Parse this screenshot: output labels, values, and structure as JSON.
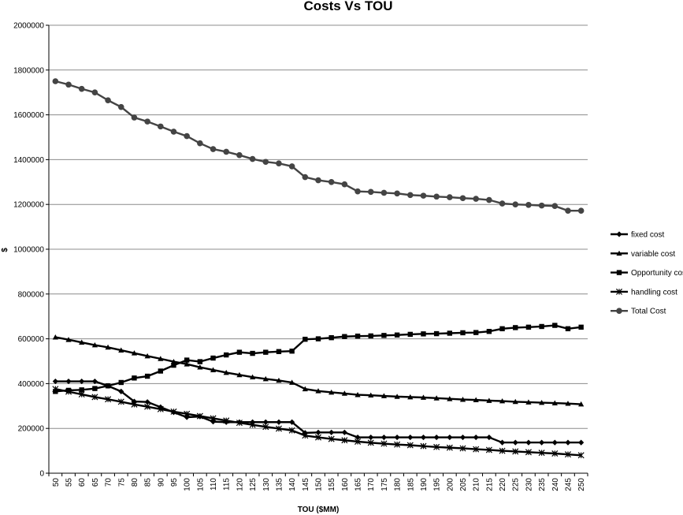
{
  "chart_data": {
    "type": "line",
    "title": "Costs Vs TOU",
    "xlabel": "TOU ($MM)",
    "ylabel": "$",
    "ylim": [
      0,
      2000000
    ],
    "yticks": [
      "0",
      "200000",
      "400000",
      "600000",
      "800000",
      "1000000",
      "1200000",
      "1400000",
      "1600000",
      "1800000",
      "2000000"
    ],
    "grid": "horizontal",
    "legend_position": "right",
    "x": [
      50,
      55,
      60,
      65,
      70,
      75,
      80,
      85,
      90,
      95,
      100,
      105,
      110,
      115,
      120,
      125,
      130,
      135,
      140,
      145,
      150,
      155,
      160,
      165,
      170,
      175,
      180,
      185,
      190,
      195,
      200,
      205,
      210,
      215,
      220,
      225,
      230,
      235,
      240,
      245,
      250
    ],
    "series": [
      {
        "name": "fixed cost",
        "marker": "diamond",
        "color": "#000000",
        "values": [
          410000,
          410000,
          410000,
          410000,
          390000,
          365000,
          320000,
          318000,
          295000,
          272000,
          250000,
          253000,
          230000,
          228000,
          228000,
          228000,
          228000,
          228000,
          228000,
          180000,
          182000,
          182000,
          182000,
          160000,
          160000,
          160000,
          160000,
          160000,
          160000,
          160000,
          160000,
          160000,
          160000,
          160000,
          137000,
          137000,
          137000,
          137000,
          137000,
          137000,
          137000
        ]
      },
      {
        "name": "variable cost",
        "marker": "triangle",
        "color": "#000000",
        "values": [
          607000,
          596000,
          584000,
          572000,
          562000,
          549000,
          536000,
          523000,
          511000,
          498000,
          487000,
          473000,
          461000,
          449000,
          439000,
          429000,
          421000,
          414000,
          405000,
          376000,
          367000,
          361000,
          356000,
          350000,
          348000,
          345000,
          342000,
          340000,
          338000,
          335000,
          332000,
          329000,
          327000,
          324000,
          322000,
          319000,
          317000,
          315000,
          313000,
          311000,
          308000
        ]
      },
      {
        "name": "Opportunity cost",
        "marker": "square",
        "color": "#000000",
        "values": [
          365000,
          370000,
          372000,
          378000,
          390000,
          405000,
          425000,
          433000,
          456000,
          482000,
          505000,
          498000,
          514000,
          528000,
          540000,
          535000,
          540000,
          543000,
          545000,
          598000,
          600000,
          605000,
          610000,
          612000,
          613000,
          615000,
          617000,
          620000,
          622000,
          623000,
          625000,
          627000,
          628000,
          633000,
          645000,
          650000,
          652000,
          655000,
          660000,
          645000,
          652000
        ]
      },
      {
        "name": "handling cost",
        "marker": "asterisk",
        "color": "#000000",
        "values": [
          376000,
          364000,
          352000,
          340000,
          330000,
          319000,
          307000,
          297000,
          286000,
          275000,
          265000,
          255000,
          245000,
          235000,
          225000,
          216000,
          207000,
          199000,
          191000,
          168000,
          160000,
          153000,
          147000,
          141000,
          136000,
          132000,
          128000,
          125000,
          121000,
          117000,
          114000,
          111000,
          107000,
          104000,
          100000,
          97000,
          94000,
          91000,
          88000,
          84000,
          80000
        ]
      },
      {
        "name": "Total Cost",
        "marker": "circle",
        "color": "#444444",
        "values": [
          1750000,
          1735000,
          1716000,
          1700000,
          1665000,
          1635000,
          1588000,
          1570000,
          1548000,
          1525000,
          1505000,
          1473000,
          1447000,
          1435000,
          1420000,
          1403000,
          1390000,
          1383000,
          1370000,
          1322000,
          1308000,
          1300000,
          1290000,
          1258000,
          1256000,
          1252000,
          1249000,
          1242000,
          1239000,
          1235000,
          1232000,
          1228000,
          1225000,
          1220000,
          1204000,
          1200000,
          1198000,
          1195000,
          1193000,
          1172000,
          1172000
        ]
      }
    ]
  }
}
